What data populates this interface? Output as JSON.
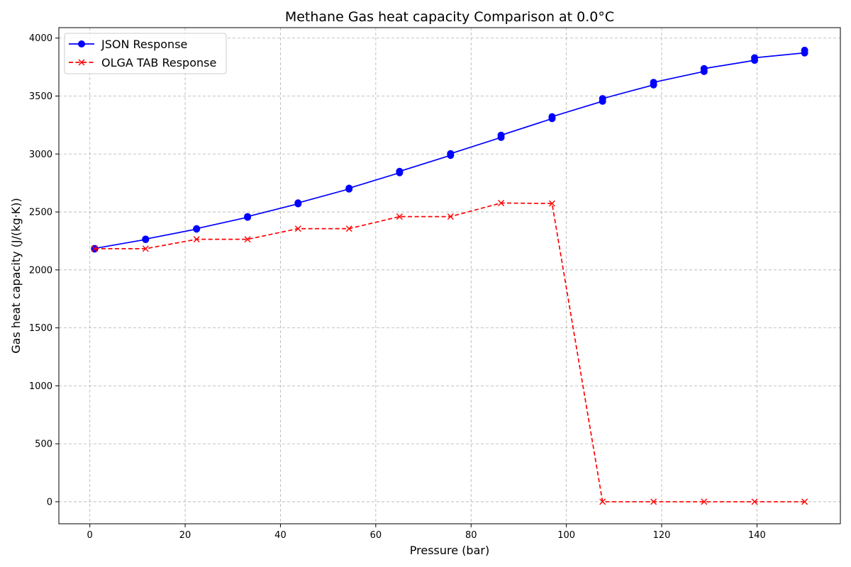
{
  "chart_data": {
    "type": "line",
    "title": "Methane Gas heat capacity Comparison at 0.0°C",
    "xlabel": "Pressure (bar)",
    "ylabel": "Gas heat capacity (J/(kg·K))",
    "xlim": [
      -6.5,
      157.5
    ],
    "ylim": [
      -190,
      4090
    ],
    "xticks": [
      0,
      20,
      40,
      60,
      80,
      100,
      120,
      140
    ],
    "yticks": [
      0,
      500,
      1000,
      1500,
      2000,
      2500,
      3000,
      3500,
      4000
    ],
    "grid": true,
    "legend_position": "top-left",
    "series": [
      {
        "name": "JSON Response",
        "color": "#0000ff",
        "line_style": "solid",
        "marker": "circle",
        "x": [
          1.0,
          1.0,
          11.7,
          11.7,
          22.4,
          22.4,
          33.1,
          33.1,
          43.7,
          43.7,
          54.4,
          54.4,
          65.0,
          65.0,
          75.7,
          75.7,
          86.3,
          86.3,
          97.0,
          97.0,
          107.6,
          107.6,
          118.3,
          118.3,
          128.9,
          128.9,
          139.5,
          139.5,
          150.0,
          150.0
        ],
        "y": [
          2180,
          2185,
          2262,
          2266,
          2352,
          2356,
          2454,
          2460,
          2570,
          2578,
          2698,
          2705,
          2838,
          2850,
          2988,
          3003,
          3143,
          3162,
          3305,
          3322,
          3455,
          3478,
          3596,
          3618,
          3712,
          3737,
          3808,
          3830,
          3872,
          3895
        ]
      },
      {
        "name": "OLGA TAB Response",
        "color": "#ff0000",
        "line_style": "dashed",
        "marker": "x",
        "x": [
          1.0,
          11.7,
          22.4,
          33.1,
          43.7,
          54.4,
          65.0,
          75.7,
          86.3,
          97.0,
          107.6,
          118.3,
          128.9,
          139.5,
          150.0
        ],
        "y": [
          2183,
          2183,
          2264,
          2264,
          2356,
          2356,
          2460,
          2460,
          2577,
          2573,
          0,
          0,
          0,
          0,
          0
        ]
      }
    ]
  }
}
